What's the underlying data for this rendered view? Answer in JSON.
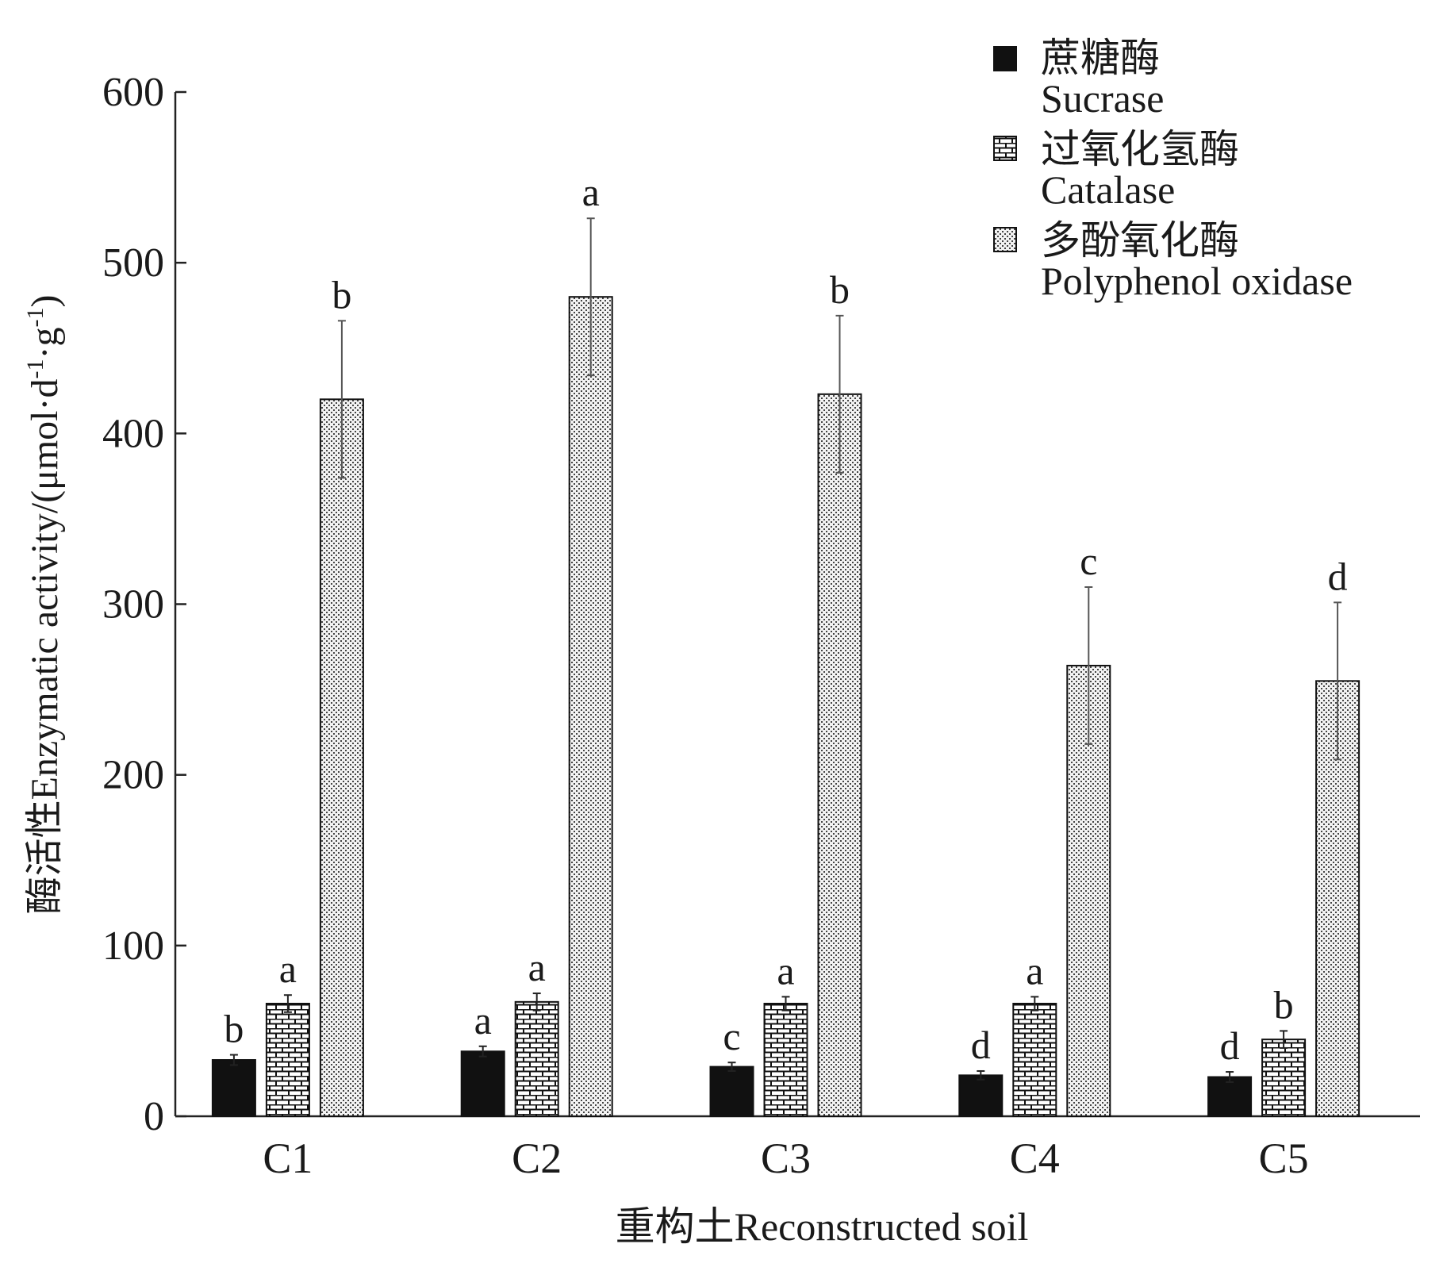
{
  "chart_data": {
    "type": "bar",
    "xlabel_cn": "重构土",
    "xlabel_en": "Reconstructed soil",
    "ylabel_cn": "酶活性",
    "ylabel_en": "Enzymatic activity/(μmol·d",
    "ylabel_sup1": "-1",
    "ylabel_mid": "·g",
    "ylabel_sup2": "-1",
    "ylabel_end": ")",
    "ylim": [
      0,
      600
    ],
    "yticks": [
      0,
      100,
      200,
      300,
      400,
      500,
      600
    ],
    "categories": [
      "C1",
      "C2",
      "C3",
      "C4",
      "C5"
    ],
    "grid": false,
    "legend_position": "top-right",
    "series": [
      {
        "name_cn": "蔗糖酶",
        "name_en": "Sucrase",
        "pattern": "solid",
        "color": "#111111",
        "values": [
          33,
          38,
          29,
          24,
          23
        ],
        "errors": [
          3,
          3,
          2.5,
          2.5,
          3
        ],
        "letters": [
          "b",
          "a",
          "c",
          "d",
          "d"
        ]
      },
      {
        "name_cn": "过氧化氢酶",
        "name_en": "Catalase",
        "pattern": "brick",
        "color": "#ffffff",
        "values": [
          66,
          67,
          66,
          66,
          45
        ],
        "errors": [
          5,
          5,
          4,
          4,
          5
        ],
        "letters": [
          "a",
          "a",
          "a",
          "a",
          "b"
        ]
      },
      {
        "name_cn": "多酚氧化酶",
        "name_en": "Polyphenol oxidase",
        "pattern": "dots",
        "color": "#e8e8e8",
        "values": [
          420,
          480,
          423,
          264,
          255
        ],
        "errors": [
          46,
          46,
          46,
          46,
          46
        ],
        "letters": [
          "b",
          "a",
          "b",
          "c",
          "d"
        ]
      }
    ]
  }
}
